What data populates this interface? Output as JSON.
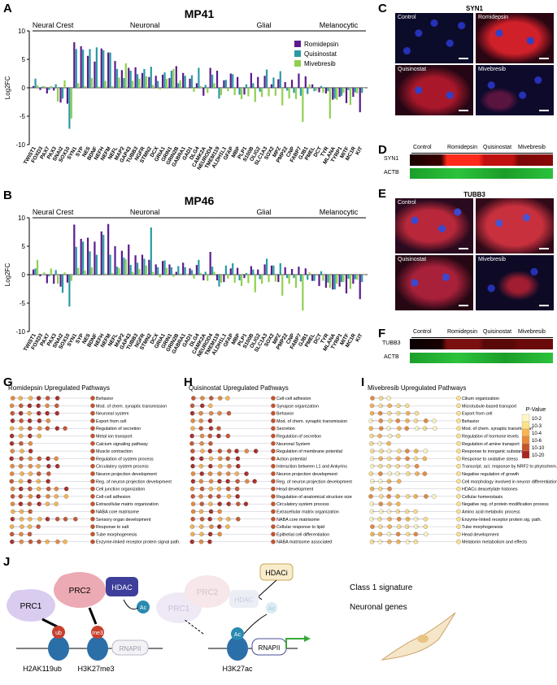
{
  "panel_letters": [
    "A",
    "B",
    "C",
    "D",
    "E",
    "F",
    "G",
    "H",
    "I",
    "J"
  ],
  "chart_data": [
    {
      "type": "bar",
      "title": "MP41",
      "ylabel": "Log2FC",
      "ylim": [
        -10,
        10
      ],
      "yticks": [
        "10",
        "5",
        "0",
        "-5",
        "-10"
      ],
      "groups": [
        "Neural Crest",
        "Neuronal",
        "Glial",
        "Melanocytic"
      ],
      "categories": [
        "TWIST1",
        "FOXD3",
        "PAX7",
        "PAX3",
        "SNAI2",
        "SOX10",
        "SYN1",
        "SYP",
        "NES",
        "BDNF",
        "NEFH",
        "NEFM",
        "NEFL",
        "MAP2",
        "GAP43",
        "TUBB3",
        "NGFR",
        "STMN2",
        "DCX",
        "GRIA1",
        "GRIN1",
        "GRIN2B",
        "GABRA1",
        "GAD1",
        "DLG4",
        "CAMK2A",
        "NEUROD4",
        "TMEM119",
        "ALDH1L1",
        "GFAP",
        "MBP",
        "PLP1",
        "S100B",
        "OLIG2",
        "SLC1A3",
        "SOX2",
        "MPZ",
        "PMP22",
        "CNP",
        "FABP7",
        "GJB1",
        "PMEL",
        "DCT",
        "TYR",
        "MLANA",
        "TYRP1",
        "MITF",
        "MC1R",
        "KIT"
      ],
      "series": [
        {
          "name": "Romidepsin",
          "color": "#5c1b8c",
          "values": [
            0.3,
            -0.4,
            -1.0,
            -0.5,
            -2.6,
            -2.8,
            8.0,
            7.3,
            5.6,
            4.6,
            6.9,
            6.2,
            4.7,
            3.1,
            3.5,
            3.6,
            2.6,
            1.9,
            2.1,
            2.3,
            1.7,
            3.8,
            2.6,
            1.6,
            0.8,
            -1.4,
            3.5,
            3.0,
            1.3,
            2.5,
            1.9,
            -1.2,
            2.6,
            1.9,
            2.1,
            0.6,
            1.5,
            1.0,
            1.4,
            2.5,
            2.0,
            0.6,
            -0.8,
            -1.0,
            -2.1,
            -1.6,
            -2.7,
            -1.6,
            -4.3
          ]
        },
        {
          "name": "Quisinostat",
          "color": "#2b9aa6",
          "values": [
            1.6,
            0.2,
            -0.4,
            0.6,
            -1.9,
            -7.2,
            6.8,
            6.7,
            6.8,
            7.1,
            6.6,
            6.2,
            3.3,
            1.7,
            3.0,
            2.4,
            3.3,
            3.7,
            1.2,
            2.7,
            3.0,
            0.8,
            2.1,
            2.2,
            3.5,
            0.5,
            2.3,
            -1.9,
            1.4,
            2.4,
            -1.2,
            0.6,
            0.8,
            -0.7,
            3.2,
            1.8,
            2.9,
            -0.5,
            -0.9,
            -1.4,
            -1.1,
            -0.6,
            0.3,
            -0.6,
            -1.9,
            -1.4,
            -0.4,
            -0.8,
            -0.9
          ]
        },
        {
          "name": "Mivebresib",
          "color": "#8fd14f",
          "values": [
            0.4,
            0.3,
            0.3,
            -2.4,
            1.3,
            -5.4,
            0.8,
            0.3,
            1.7,
            0.2,
            1.2,
            0.3,
            1.8,
            4.3,
            1.2,
            1.6,
            2.0,
            0.5,
            -0.3,
            1.6,
            3.3,
            1.3,
            0.1,
            -0.7,
            0.3,
            -0.9,
            0.8,
            -1.3,
            -0.6,
            -1.3,
            -2.0,
            -1.5,
            -2.5,
            -1.6,
            -1.5,
            -1.4,
            -3.1,
            -1.9,
            -2.0,
            -6.0,
            0.6,
            -0.5,
            -0.9,
            -5.4,
            -2.1,
            -0.9,
            -3.0,
            -1.0,
            0.0
          ]
        }
      ]
    },
    {
      "type": "bar",
      "title": "MP46",
      "ylabel": "Log2FC",
      "ylim": [
        -10,
        10
      ],
      "yticks": [
        "10",
        "5",
        "0",
        "-5",
        "-10"
      ],
      "groups": [
        "Neural Crest",
        "Neuronal",
        "Glial",
        "Melanocytic"
      ],
      "categories": [
        "TWIST1",
        "FOXD3",
        "PAX7",
        "PAX3",
        "SNAI2",
        "SOX10",
        "SYN1",
        "SYP",
        "NES",
        "BDNF",
        "NEFH",
        "NEFM",
        "NEFL",
        "MAP2",
        "GAP43",
        "TUBB3",
        "NGFR",
        "STMN2",
        "DCX",
        "GRIA1",
        "GRIN1",
        "GRIN2B",
        "GABRA1",
        "GAD1",
        "DLG4",
        "CAMK2A",
        "NEUROD4",
        "TMEM119",
        "ALDH1L1",
        "GFAP",
        "MBP",
        "PLP1",
        "S100B",
        "OLIG2",
        "SLC1A3",
        "SOX2",
        "MPZ",
        "PMP22",
        "CNP",
        "FABP7",
        "GJB1",
        "PMEL",
        "DCT",
        "TYR",
        "MLANA",
        "TYRP1",
        "MITF",
        "MC1R",
        "KIT"
      ],
      "series": [
        {
          "name": "Romidepsin",
          "color": "#5c1b8c",
          "values": [
            0.9,
            -0.3,
            -1.5,
            -1.6,
            -2.1,
            -1.4,
            8.8,
            6.3,
            6.5,
            5.8,
            7.6,
            8.9,
            5.0,
            4.2,
            5.3,
            3.4,
            3.5,
            2.6,
            1.8,
            2.4,
            1.8,
            0.5,
            2.1,
            1.1,
            1.7,
            -1.0,
            4.0,
            -1.0,
            -1.3,
            1.1,
            1.2,
            -0.6,
            1.5,
            0.9,
            1.8,
            1.6,
            -1.3,
            1.3,
            1.0,
            1.4,
            1.1,
            -1.1,
            -2.0,
            -2.3,
            -2.6,
            -2.1,
            -3.3,
            -1.6,
            -4.3
          ]
        },
        {
          "name": "Quisinostat",
          "color": "#2b9aa6",
          "values": [
            1.1,
            0.0,
            -0.3,
            0.8,
            -3.2,
            -5.6,
            4.9,
            5.8,
            4.1,
            3.5,
            7.0,
            3.5,
            1.4,
            3.0,
            1.7,
            2.1,
            2.8,
            8.3,
            1.3,
            2.5,
            1.3,
            1.5,
            1.3,
            0.8,
            2.6,
            0.5,
            1.4,
            -2.1,
            1.6,
            2.0,
            -1.0,
            0.3,
            0.9,
            -0.8,
            2.8,
            1.6,
            2.0,
            -0.6,
            -0.6,
            -1.2,
            -0.9,
            -1.1,
            0.6,
            -1.4,
            -2.6,
            -1.3,
            -0.7,
            -0.8,
            -1.3
          ]
        },
        {
          "name": "Mivebresib",
          "color": "#8fd14f",
          "values": [
            2.6,
            0.4,
            1.1,
            -1.6,
            0.4,
            -1.1,
            1.2,
            0.7,
            1.3,
            0.1,
            0.2,
            0.3,
            1.2,
            2.7,
            0.5,
            1.0,
            1.6,
            0.5,
            -0.5,
            1.2,
            -0.4,
            0.2,
            0.0,
            -0.7,
            0.3,
            -1.1,
            0.5,
            -1.4,
            -0.7,
            -1.4,
            -2.0,
            -1.5,
            -3.1,
            -1.6,
            -1.3,
            -1.2,
            -3.7,
            -1.6,
            -2.3,
            -6.3,
            0.4,
            -0.2,
            -1.1,
            -2.3,
            -1.6,
            -1.3,
            -2.5,
            -0.9,
            0.0
          ]
        }
      ]
    }
  ],
  "legend": [
    "Romidepsin",
    "Quisinostat",
    "Mivebresib"
  ],
  "panel_c": {
    "title": "SYN1",
    "tiles": [
      "Control",
      "Romidepsin",
      "Quisinostat",
      "Mivebresib"
    ]
  },
  "panel_d": {
    "lanes": [
      "Control",
      "Romidepsin",
      "Quisinostat",
      "Mivebresib"
    ],
    "rows": [
      "SYN1",
      "ACTB"
    ]
  },
  "panel_e": {
    "title": "TUBB3",
    "tiles": [
      "Control",
      "",
      "Quisinostat",
      "Mivebresib"
    ]
  },
  "panel_f": {
    "lanes": [
      "Control",
      "Romidepsin",
      "Quisinostat",
      "Mivebresib"
    ],
    "rows": [
      "TUBB3",
      "ACTB"
    ]
  },
  "panel_g": {
    "title": "Romidepsin Upregulated Pathways",
    "terms": [
      "Behavior",
      "Mod. of chem. synaptic transmission",
      "Neuronal system",
      "Export from cell",
      "Regulation of secretion",
      "Metal ion transport",
      "Calcium signaling pathway",
      "Muscle contraction",
      "Regulation of system process",
      "Circulatory system process",
      "Neuron projection development",
      "Reg. of neuron projection development",
      "Cell junction organization",
      "Cell-cell adhesion",
      "Extracellular matrix organization",
      "NABA core matrisome",
      "Sensory organ development",
      "Response to salt",
      "Tube morphogenesis",
      "Enzyme-linked receptor protein signal path."
    ]
  },
  "panel_h": {
    "title": "Quisinostat Upregulated Pathways",
    "terms": [
      "Cell-cell adhesion",
      "Synapse organization",
      "Behavior",
      "Mod. of chem. synaptic transmission",
      "Secretion",
      "Regulation of secretion",
      "Neuronal System",
      "Regulation of membrane potential",
      "Action potential",
      "Interaction between L1 and Ankyrins",
      "Neuron projection development",
      "Reg. of neuron projection development",
      "Head development",
      "Regulation of anatomical structure size",
      "Circulatory system process",
      "Extracellular matrix organization",
      "NABA core matrisome",
      "Cellular response to lipid",
      "Epithelial cell differentiation",
      "NABA matrisome associated"
    ]
  },
  "panel_i": {
    "title": "Mivebresib Upregulated Pathways",
    "terms": [
      "Cilium organization",
      "Microtubule-based transport",
      "Export from cell",
      "Behavior",
      "Mod. of chem. synaptic transmission",
      "Regulation of hormone levels",
      "Regulation of amine transport",
      "Response to inorganic substance",
      "Response to oxidative stress",
      "Transcript. act. response by NRF2 to phytochem.",
      "Negative regulation of growth",
      "Cell morphology involved in neuron differentiation",
      "HDACs deacetylate histones",
      "Cellular homeostasis",
      "Negative reg. of protein modification process",
      "Amino acid metabolic process",
      "Enzyme-linked receptor protein sig. path.",
      "Tube morphogenesis",
      "Head development",
      "Melatonin metabolism and effects"
    ],
    "pvalue_title": "P-Value",
    "pvalue_labels": [
      "10-2",
      "10-3",
      "10-4",
      "10-6",
      "10-10",
      "10-20"
    ],
    "pvalue_colors": [
      "#fff7c2",
      "#fde08a",
      "#f8b550",
      "#e88a3a",
      "#c8532b",
      "#a8261f"
    ]
  },
  "panel_j": {
    "labels": {
      "prc1": "PRC1",
      "prc2": "PRC2",
      "hdac": "HDAC",
      "ac": "Ac",
      "ub": "ub",
      "me3": "me3",
      "rnapii": "RNAPII",
      "h2ak": "H2AK119ub",
      "h3k27me3": "H3K27me3",
      "hdaci": "HDACi",
      "prc1_faded": "PRC1",
      "prc2_faded": "PRC2",
      "hdac_faded": "HDAC",
      "ac_faded": "Ac",
      "ac_nuc": "Ac",
      "rnapii2": "RNAPII",
      "h3k27ac": "H3K27ac",
      "class1": "Class 1 signature",
      "neuronal": "Neuronal genes"
    }
  }
}
